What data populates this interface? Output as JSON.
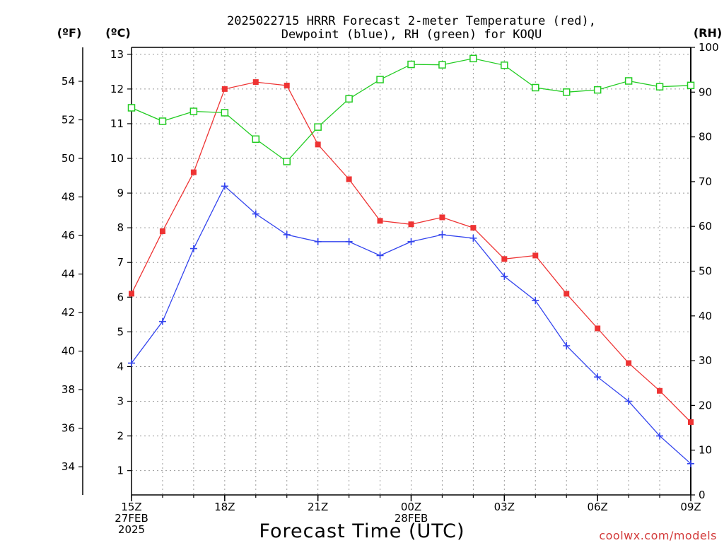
{
  "chart_data": {
    "type": "line",
    "title_line1": "2025022715 HRRR Forecast 2-meter Temperature (red),",
    "title_line2": "Dewpoint (blue), RH (green) for KOQU",
    "xlabel": "Forecast Time (UTC)",
    "unit_labels": {
      "fahrenheit": "(ºF)",
      "celsius": "(ºC)",
      "rh": "(RH)"
    },
    "credit": "coolwx.com/models",
    "x_hours": [
      0,
      1,
      2,
      3,
      4,
      5,
      6,
      7,
      8,
      9,
      10,
      11,
      12,
      13,
      14,
      15,
      16,
      17,
      18
    ],
    "x_ticks": [
      {
        "hour": 0,
        "lines": [
          "15Z",
          "27FEB",
          "2025"
        ]
      },
      {
        "hour": 3,
        "lines": [
          "18Z"
        ]
      },
      {
        "hour": 6,
        "lines": [
          "21Z"
        ]
      },
      {
        "hour": 9,
        "lines": [
          "00Z",
          "28FEB"
        ]
      },
      {
        "hour": 12,
        "lines": [
          "03Z"
        ]
      },
      {
        "hour": 15,
        "lines": [
          "06Z"
        ]
      },
      {
        "hour": 18,
        "lines": [
          "09Z"
        ]
      }
    ],
    "xlim": [
      0,
      18
    ],
    "ylim_celsius": [
      0.3,
      13.2
    ],
    "ylim_rh": [
      0,
      100
    ],
    "celsius_ticks": [
      1,
      2,
      3,
      4,
      5,
      6,
      7,
      8,
      9,
      10,
      11,
      12,
      13
    ],
    "fahrenheit_ticks": [
      34,
      36,
      38,
      40,
      42,
      44,
      46,
      48,
      50,
      52,
      54
    ],
    "rh_ticks": [
      0,
      10,
      20,
      30,
      40,
      50,
      60,
      70,
      80,
      90,
      100
    ],
    "grid": true,
    "series": [
      {
        "name": "Temperature",
        "axis": "celsius",
        "color": "#ee3333",
        "marker": "filled-square",
        "values": [
          6.1,
          7.9,
          9.6,
          12.0,
          12.2,
          12.1,
          10.4,
          9.4,
          8.2,
          8.1,
          8.3,
          8.0,
          7.1,
          7.2,
          6.1,
          5.1,
          4.1,
          3.3,
          2.4
        ]
      },
      {
        "name": "Dewpoint",
        "axis": "celsius",
        "color": "#3344ee",
        "marker": "plus",
        "values": [
          4.1,
          5.3,
          7.4,
          9.2,
          8.4,
          7.8,
          7.6,
          7.6,
          7.2,
          7.6,
          7.8,
          7.7,
          6.6,
          5.9,
          4.6,
          3.7,
          3.0,
          2.0,
          1.2
        ]
      },
      {
        "name": "RH",
        "axis": "rh",
        "color": "#22cc22",
        "marker": "open-square",
        "values": [
          86.5,
          83.5,
          85.7,
          85.4,
          79.5,
          74.5,
          82.2,
          88.5,
          92.8,
          96.2,
          96.1,
          97.5,
          96.0,
          91.0,
          90.0,
          90.5,
          92.5,
          91.2,
          91.5
        ]
      }
    ]
  }
}
